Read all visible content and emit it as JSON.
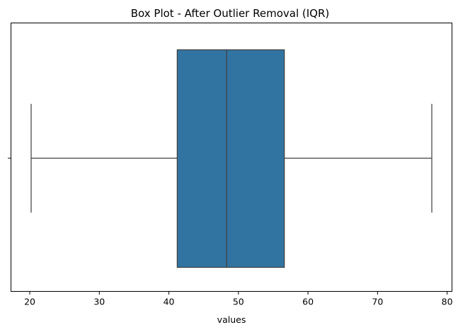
{
  "chart_data": {
    "type": "box",
    "title": "Box Plot - After Outlier Removal (IQR)",
    "xlabel": "values",
    "ylabel": "",
    "orientation": "horizontal",
    "xlim": [
      17.3,
      80.7
    ],
    "xticks": [
      20,
      30,
      40,
      50,
      60,
      70,
      80
    ],
    "grid": false,
    "box": {
      "whisker_low": 20.2,
      "q1": 41.2,
      "median": 48.3,
      "q3": 56.6,
      "whisker_high": 77.8
    },
    "box_color": "#3274a1",
    "line_color": "#3d3d3d"
  }
}
